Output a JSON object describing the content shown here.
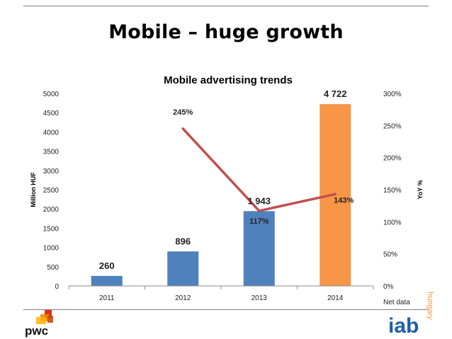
{
  "slide": {
    "title": "Mobile – huge growth",
    "footnote": "Net data"
  },
  "logos": {
    "pwc_text": "pwc",
    "iab_text": "iab",
    "iab_sub": "hungary"
  },
  "colors": {
    "bar_primary": "#4f81bd",
    "bar_highlight": "#f79646",
    "line": "#c0504d",
    "iab_blue": "#1f5fa6",
    "iab_orange": "#f79646"
  },
  "chart_data": {
    "type": "bar",
    "title": "Mobile advertising trends",
    "categories": [
      "2011",
      "2012",
      "2013",
      "2014"
    ],
    "series": [
      {
        "name": "Million HUF",
        "type": "bar",
        "axis": "left",
        "values": [
          260,
          896,
          1943,
          4722
        ],
        "labels": [
          "260",
          "896",
          "1 943",
          "4 722"
        ]
      },
      {
        "name": "YoY %",
        "type": "line",
        "axis": "right",
        "values": [
          null,
          245,
          117,
          143
        ],
        "labels": [
          "",
          "245%",
          "117%",
          "143%"
        ]
      }
    ],
    "ylabel": "Million HUF",
    "ylim": [
      0,
      5000
    ],
    "yticks": [
      "0",
      "500",
      "1000",
      "1500",
      "2000",
      "2500",
      "3000",
      "3500",
      "4000",
      "4500",
      "5000"
    ],
    "y2label": "YoY %",
    "y2lim": [
      0,
      300
    ],
    "y2ticks": [
      "0%",
      "50%",
      "100%",
      "150%",
      "200%",
      "250%",
      "300%"
    ],
    "highlight_index": 3,
    "grid": false,
    "legend": "none"
  }
}
